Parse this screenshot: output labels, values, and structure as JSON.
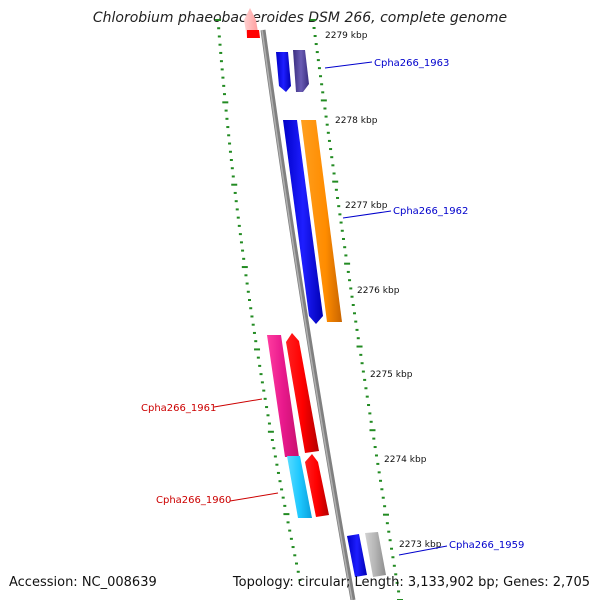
{
  "title": "Chlorobium phaeobacteroides DSM 266, complete genome",
  "accession": "Accession: NC_008639",
  "summary": "Topology: circular; Length: 3,133,902 bp; Genes: 2,705",
  "ticks": [
    "2279 kbp",
    "2278 kbp",
    "2277 kbp",
    "2276 kbp",
    "2275 kbp",
    "2274 kbp",
    "2273 kbp"
  ],
  "genes": [
    {
      "name": "Cpha266_1963",
      "color": "#0000cc"
    },
    {
      "name": "Cpha266_1962",
      "color": "#0000cc"
    },
    {
      "name": "Cpha266_1961",
      "color": "#cc0000"
    },
    {
      "name": "Cpha266_1960",
      "color": "#cc0000"
    },
    {
      "name": "Cpha266_1959",
      "color": "#0000cc"
    }
  ],
  "colors": {
    "backbone": "#808080",
    "tick_marks": "#228b22",
    "blue": "#0000ff",
    "purple": "#4b3c96",
    "orange": "#ff8c00",
    "magenta": "#e8198c",
    "red": "#ff0000",
    "cyan": "#1ec8ff",
    "gray": "#b4b4b4",
    "pink": "#ffb4b4"
  }
}
